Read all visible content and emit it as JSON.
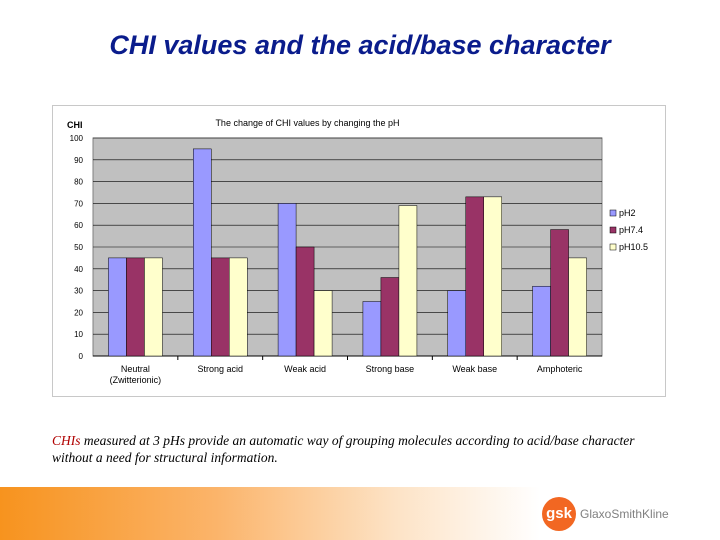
{
  "slide": {
    "title": "CHI values and the acid/base character",
    "caption_highlight": "CHIs",
    "caption_rest": " measured at 3 pHs provide an automatic way of grouping molecules according to acid/base character without a need for structural information."
  },
  "footer": {
    "logo_text": "gsk",
    "brand": "GlaxoSmithKline"
  },
  "colors": {
    "title": "#0a1c8c",
    "ph2": "#9999ff",
    "ph74": "#993366",
    "ph105": "#ffffcc",
    "plot_bg": "#c0c0c0",
    "accent": "#f26722"
  },
  "chart_data": {
    "type": "bar",
    "title": "The change of CHI values by changing the pH",
    "ylabel": "CHI",
    "xlabel": "",
    "ylim": [
      0,
      100
    ],
    "yticks": [
      0,
      10,
      20,
      30,
      40,
      50,
      60,
      70,
      80,
      90,
      100
    ],
    "grid": true,
    "legend": "right",
    "categories": [
      "Neutral\n(Zwitterionic)",
      "Strong acid",
      "Weak acid",
      "Strong base",
      "Weak base",
      "Amphoteric"
    ],
    "series": [
      {
        "name": "pH2",
        "color": "#9999ff",
        "values": [
          45,
          95,
          70,
          25,
          30,
          32
        ]
      },
      {
        "name": "pH7.4",
        "color": "#993366",
        "values": [
          45,
          45,
          50,
          36,
          73,
          58
        ]
      },
      {
        "name": "pH10.5",
        "color": "#ffffcc",
        "values": [
          45,
          45,
          30,
          69,
          73,
          45
        ]
      }
    ]
  }
}
